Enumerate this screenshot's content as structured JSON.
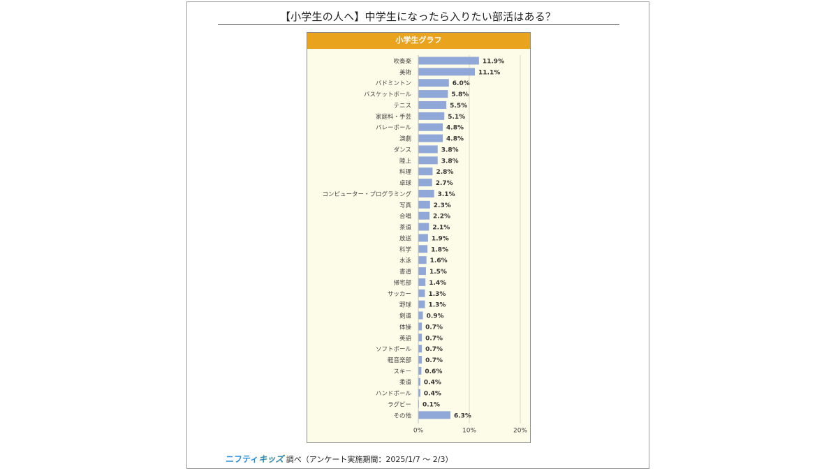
{
  "title": "【小学生の人へ】中学生になったら入りたい部活はある？",
  "chart_header": "小学生グラフ",
  "footer": {
    "brand_part1": "ニフティ",
    "brand_part2": "キッズ",
    "text": "調べ（アンケート実施期間：2025/1/7 ～ 2/3）"
  },
  "colors": {
    "bar": "#8fa8d8",
    "header": "#e9a31d",
    "plot_background": "#fdfce8",
    "brand": "#2a8fd6"
  },
  "chart_data": {
    "type": "bar",
    "orientation": "horizontal",
    "categories": [
      "吹奏楽",
      "美術",
      "バドミントン",
      "バスケットボール",
      "テニス",
      "家庭科・手芸",
      "バレーボール",
      "演劇",
      "ダンス",
      "陸上",
      "料理",
      "卓球",
      "コンピューター・プログラミング",
      "写真",
      "合唱",
      "茶道",
      "放送",
      "科学",
      "水泳",
      "書道",
      "帰宅部",
      "サッカー",
      "野球",
      "剣道",
      "体操",
      "英語",
      "ソフトボール",
      "軽音楽部",
      "スキー",
      "柔道",
      "ハンドボール",
      "ラグビー",
      "その他"
    ],
    "values": [
      11.9,
      11.1,
      6.0,
      5.8,
      5.5,
      5.1,
      4.8,
      4.8,
      3.8,
      3.8,
      2.8,
      2.7,
      3.1,
      2.3,
      2.2,
      2.1,
      1.9,
      1.8,
      1.6,
      1.5,
      1.4,
      1.3,
      1.3,
      0.9,
      0.7,
      0.7,
      0.7,
      0.7,
      0.6,
      0.4,
      0.4,
      0.1,
      6.3
    ],
    "value_labels": [
      "11.9%",
      "11.1%",
      "6.0%",
      "5.8%",
      "5.5%",
      "5.1%",
      "4.8%",
      "4.8%",
      "3.8%",
      "3.8%",
      "2.8%",
      "2.7%",
      "3.1%",
      "2.3%",
      "2.2%",
      "2.1%",
      "1.9%",
      "1.8%",
      "1.6%",
      "1.5%",
      "1.4%",
      "1.3%",
      "1.3%",
      "0.9%",
      "0.7%",
      "0.7%",
      "0.7%",
      "0.7%",
      "0.6%",
      "0.4%",
      "0.4%",
      "0.1%",
      "6.3%"
    ],
    "xlim": [
      0,
      20
    ],
    "x_ticks": [
      "0%",
      "10%",
      "20%"
    ],
    "x_tick_values": [
      0,
      10,
      20
    ],
    "grid": true
  }
}
